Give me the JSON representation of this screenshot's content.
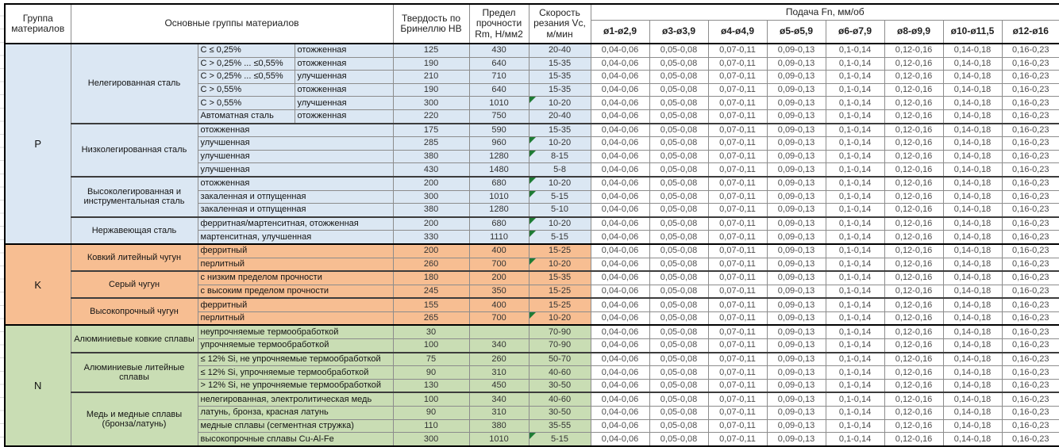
{
  "page": {
    "background": "#ffffff"
  },
  "colors": {
    "group_P": "#dbe7f3",
    "group_K": "#f7be92",
    "group_N": "#c9ddb4",
    "feed_cell_bg": "#ffffff",
    "error_flag": "#1e7b34",
    "border_thin": "#8c8c8c",
    "border_thick": "#000000"
  },
  "table": {
    "headers": {
      "group": "Группа материалов",
      "main_groups": "Основные группы материалов",
      "hardness": "Твердость по Бринеллю HB",
      "strength": "Предел прочности Rm, Н/мм2",
      "speed": "Скорость резания Vc, м/мин",
      "feed": "Подача Fn, мм/об"
    },
    "diameters": [
      "ø1-ø2,9",
      "ø3-ø3,9",
      "ø4-ø4,9",
      "ø5-ø5,9",
      "ø6-ø7,9",
      "ø8-ø9,9",
      "ø10-ø11,5",
      "ø12-ø16"
    ],
    "feed_values": [
      "0,04-0,06",
      "0,05-0,08",
      "0,07-0,11",
      "0,09-0,13",
      "0,1-0,14",
      "0,12-0,16",
      "0,14-0,18",
      "0,16-0,23"
    ],
    "groups": [
      {
        "code": "P",
        "color": "#dbe7f3",
        "categories": [
          {
            "name": "Нелегированная сталь",
            "rows": [
              {
                "sub1": "C ≤ 0,25%",
                "sub2": "отожженная",
                "hb": "125",
                "rm": "430",
                "vc": "20-40",
                "flag": false
              },
              {
                "sub1": "C > 0,25% ... ≤0,55%",
                "sub2": "отожженная",
                "hb": "190",
                "rm": "640",
                "vc": "15-35",
                "flag": false
              },
              {
                "sub1": "C > 0,25% ... ≤0,55%",
                "sub2": "улучшенная",
                "hb": "210",
                "rm": "710",
                "vc": "15-35",
                "flag": false
              },
              {
                "sub1": "C > 0,55%",
                "sub2": "отожженная",
                "hb": "190",
                "rm": "640",
                "vc": "15-35",
                "flag": false
              },
              {
                "sub1": "C > 0,55%",
                "sub2": "улучшенная",
                "hb": "300",
                "rm": "1010",
                "vc": "10-20",
                "flag": true
              },
              {
                "sub1": "Автоматная сталь",
                "sub2": "отожженная",
                "hb": "220",
                "rm": "750",
                "vc": "20-40",
                "flag": false
              }
            ]
          },
          {
            "name": "Низколегированная сталь",
            "rows": [
              {
                "sub1": "отожженная",
                "sub2": null,
                "hb": "175",
                "rm": "590",
                "vc": "15-35",
                "flag": false
              },
              {
                "sub1": "улучшенная",
                "sub2": null,
                "hb": "285",
                "rm": "960",
                "vc": "10-20",
                "flag": true
              },
              {
                "sub1": "улучшенная",
                "sub2": null,
                "hb": "380",
                "rm": "1280",
                "vc": "8-15",
                "flag": true
              },
              {
                "sub1": "улучшенная",
                "sub2": null,
                "hb": "430",
                "rm": "1480",
                "vc": "5-8",
                "flag": false
              }
            ]
          },
          {
            "name": "Высоколегированная и инструментальная сталь",
            "rows": [
              {
                "sub1": "отожженная",
                "sub2": null,
                "hb": "200",
                "rm": "680",
                "vc": "10-20",
                "flag": true
              },
              {
                "sub1": "закаленная и отпущенная",
                "sub2": null,
                "hb": "300",
                "rm": "1010",
                "vc": "5-15",
                "flag": true
              },
              {
                "sub1": "закаленная и отпущенная",
                "sub2": null,
                "hb": "380",
                "rm": "1280",
                "vc": "5-10",
                "flag": false
              }
            ]
          },
          {
            "name": "Нержавеющая сталь",
            "rows": [
              {
                "sub1": "ферритная/мартенситная, отожженная",
                "sub2": null,
                "hb": "200",
                "rm": "680",
                "vc": "10-20",
                "flag": true
              },
              {
                "sub1": "мартенситная, улучшенная",
                "sub2": null,
                "hb": "330",
                "rm": "1110",
                "vc": "5-15",
                "flag": true
              }
            ]
          }
        ]
      },
      {
        "code": "K",
        "color": "#f7be92",
        "categories": [
          {
            "name": "Ковкий литейный чугун",
            "rows": [
              {
                "sub1": "ферритный",
                "sub2": null,
                "hb": "200",
                "rm": "400",
                "vc": "15-25",
                "flag": false
              },
              {
                "sub1": "перлитный",
                "sub2": null,
                "hb": "260",
                "rm": "700",
                "vc": "10-20",
                "flag": true
              }
            ]
          },
          {
            "name": "Серый чугун",
            "rows": [
              {
                "sub1": "с низким пределом прочности",
                "sub2": null,
                "hb": "180",
                "rm": "200",
                "vc": "15-35",
                "flag": false
              },
              {
                "sub1": "с высоким пределом прочности",
                "sub2": null,
                "hb": "245",
                "rm": "350",
                "vc": "15-25",
                "flag": false
              }
            ]
          },
          {
            "name": "Высокопрочный чугун",
            "rows": [
              {
                "sub1": "ферритный",
                "sub2": null,
                "hb": "155",
                "rm": "400",
                "vc": "15-25",
                "flag": false
              },
              {
                "sub1": "перлитный",
                "sub2": null,
                "hb": "265",
                "rm": "700",
                "vc": "10-20",
                "flag": true
              }
            ]
          }
        ]
      },
      {
        "code": "N",
        "color": "#c9ddb4",
        "categories": [
          {
            "name": "Алюминиевые ковкие сплавы",
            "rows": [
              {
                "sub1": "неупрочняемые термообработкой",
                "sub2": null,
                "hb": "30",
                "rm": "",
                "vc": "70-90",
                "flag": false
              },
              {
                "sub1": "упрочняемые термообработкой",
                "sub2": null,
                "hb": "100",
                "rm": "340",
                "vc": "70-90",
                "flag": false
              }
            ]
          },
          {
            "name": "Алюминиевые литейные сплавы",
            "rows": [
              {
                "sub1": "≤ 12% Si, не упрочняемые термообработкой",
                "sub2": null,
                "hb": "75",
                "rm": "260",
                "vc": "50-70",
                "flag": false
              },
              {
                "sub1": "≤ 12% Si, упрочняемые термообработкой",
                "sub2": null,
                "hb": "90",
                "rm": "310",
                "vc": "40-60",
                "flag": false
              },
              {
                "sub1": "> 12% Si, не упрочняемые термообработкой",
                "sub2": null,
                "hb": "130",
                "rm": "450",
                "vc": "30-50",
                "flag": false
              }
            ]
          },
          {
            "name": "Медь и медные сплавы (бронза/латунь)",
            "rows": [
              {
                "sub1": "нелегированная, электролитическая медь",
                "sub2": null,
                "hb": "100",
                "rm": "340",
                "vc": "40-60",
                "flag": false
              },
              {
                "sub1": "латунь, бронза, красная латунь",
                "sub2": null,
                "hb": "90",
                "rm": "310",
                "vc": "30-50",
                "flag": false
              },
              {
                "sub1": "медные сплавы (сегментная стружка)",
                "sub2": null,
                "hb": "110",
                "rm": "380",
                "vc": "35-55",
                "flag": false
              },
              {
                "sub1": "высокопрочные сплавы Cu-Al-Fe",
                "sub2": null,
                "hb": "300",
                "rm": "1010",
                "vc": "5-15",
                "flag": true
              }
            ]
          }
        ]
      }
    ]
  }
}
